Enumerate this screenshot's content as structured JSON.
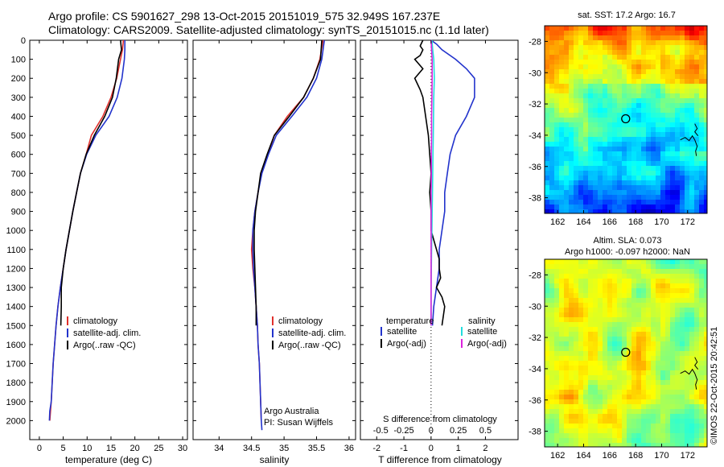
{
  "header": {
    "line1": "Argo profile: CS 5901627_298 13-Oct-2015 20151019_575 32.949S 167.237E",
    "line2": "Climatology: CARS2009. Satellite-adjusted climatology: synTS_20151015.nc (1.1d later)"
  },
  "colors": {
    "climatology": "#e0302c",
    "satellite": "#2233cc",
    "argo": "#000000",
    "magenta": "#dd22dd",
    "cyan": "#22dddd"
  },
  "chart_data": [
    {
      "type": "line",
      "xlabel": "temperature (deg C)",
      "xlim": [
        -2,
        31
      ],
      "ylim": [
        0,
        2100
      ],
      "x_ticks": [
        0,
        5,
        10,
        15,
        20,
        25,
        30
      ],
      "y_ticks": [
        0,
        100,
        200,
        300,
        400,
        500,
        600,
        700,
        800,
        900,
        1000,
        1100,
        1200,
        1300,
        1400,
        1500,
        1600,
        1700,
        1800,
        1900,
        2000
      ],
      "legend": [
        "climatology",
        "satellite-adj. clim.",
        "Argo(..raw -QC)"
      ],
      "legend_position": "lower-left",
      "series": [
        {
          "name": "climatology",
          "color": "#e0302c",
          "points": [
            [
              17.6,
              0
            ],
            [
              17.4,
              50
            ],
            [
              17.0,
              100
            ],
            [
              16.2,
              200
            ],
            [
              15.0,
              300
            ],
            [
              13.3,
              400
            ],
            [
              10.9,
              500
            ],
            [
              9.8,
              600
            ],
            [
              8.6,
              700
            ],
            [
              7.8,
              800
            ],
            [
              7.0,
              900
            ],
            [
              6.3,
              1000
            ],
            [
              5.6,
              1100
            ],
            [
              5.0,
              1200
            ],
            [
              4.4,
              1300
            ],
            [
              3.9,
              1400
            ],
            [
              3.5,
              1500
            ],
            [
              3.2,
              1600
            ],
            [
              2.9,
              1700
            ],
            [
              2.7,
              1800
            ],
            [
              2.5,
              1900
            ],
            [
              2.2,
              2000
            ]
          ]
        },
        {
          "name": "satellite-adj. clim.",
          "color": "#2233cc",
          "points": [
            [
              17.9,
              0
            ],
            [
              17.9,
              50
            ],
            [
              17.8,
              100
            ],
            [
              17.3,
              200
            ],
            [
              16.3,
              300
            ],
            [
              14.6,
              400
            ],
            [
              11.8,
              500
            ],
            [
              9.9,
              600
            ],
            [
              8.6,
              700
            ],
            [
              7.8,
              800
            ],
            [
              7.0,
              900
            ],
            [
              6.3,
              1000
            ],
            [
              5.6,
              1100
            ],
            [
              5.0,
              1200
            ],
            [
              4.4,
              1300
            ],
            [
              3.9,
              1400
            ],
            [
              3.5,
              1500
            ],
            [
              3.2,
              1600
            ],
            [
              2.9,
              1700
            ],
            [
              2.7,
              1800
            ],
            [
              2.5,
              1900
            ],
            [
              2.2,
              1950
            ],
            [
              2.1,
              2000
            ]
          ]
        },
        {
          "name": "Argo(..raw -QC)",
          "color": "#000000",
          "points": [
            [
              17.0,
              0
            ],
            [
              17.2,
              50
            ],
            [
              16.6,
              100
            ],
            [
              16.1,
              200
            ],
            [
              15.3,
              300
            ],
            [
              13.7,
              400
            ],
            [
              11.5,
              500
            ],
            [
              9.8,
              600
            ],
            [
              8.6,
              700
            ],
            [
              7.8,
              800
            ],
            [
              7.0,
              900
            ],
            [
              6.3,
              1000
            ],
            [
              5.6,
              1100
            ],
            [
              5.0,
              1200
            ],
            [
              4.6,
              1300
            ],
            [
              4.6,
              1400
            ],
            [
              4.5,
              1500
            ]
          ]
        }
      ]
    },
    {
      "type": "line",
      "xlabel": "salinity",
      "xlim": [
        33.6,
        36.1
      ],
      "ylim": [
        0,
        2100
      ],
      "x_ticks": [
        34,
        34.5,
        35,
        35.5,
        36
      ],
      "legend": [
        "climatology",
        "satellite-adj. clim.",
        "Argo(..raw -QC)"
      ],
      "legend_position": "lower-left",
      "annotations": [
        "Argo Australia",
        "PI: Susan Wijffels"
      ],
      "series": [
        {
          "name": "climatology",
          "color": "#e0302c",
          "points": [
            [
              35.6,
              0
            ],
            [
              35.55,
              100
            ],
            [
              35.45,
              200
            ],
            [
              35.3,
              300
            ],
            [
              35.05,
              400
            ],
            [
              34.85,
              500
            ],
            [
              34.75,
              600
            ],
            [
              34.65,
              700
            ],
            [
              34.6,
              800
            ],
            [
              34.55,
              900
            ],
            [
              34.52,
              1000
            ],
            [
              34.5,
              1100
            ],
            [
              34.52,
              1200
            ],
            [
              34.55,
              1300
            ],
            [
              34.57,
              1400
            ],
            [
              34.59,
              1500
            ],
            [
              34.6,
              1600
            ],
            [
              34.62,
              1700
            ],
            [
              34.63,
              1800
            ],
            [
              34.64,
              1900
            ],
            [
              34.65,
              2000
            ]
          ]
        },
        {
          "name": "satellite-adj. clim.",
          "color": "#2233cc",
          "points": [
            [
              35.62,
              0
            ],
            [
              35.58,
              100
            ],
            [
              35.5,
              200
            ],
            [
              35.35,
              300
            ],
            [
              35.12,
              400
            ],
            [
              34.88,
              500
            ],
            [
              34.76,
              600
            ],
            [
              34.66,
              700
            ],
            [
              34.6,
              800
            ],
            [
              34.55,
              900
            ],
            [
              34.52,
              1000
            ],
            [
              34.52,
              1100
            ],
            [
              34.53,
              1200
            ],
            [
              34.55,
              1300
            ],
            [
              34.57,
              1400
            ],
            [
              34.59,
              1500
            ],
            [
              34.6,
              1600
            ],
            [
              34.62,
              1700
            ],
            [
              34.63,
              1800
            ],
            [
              34.64,
              1900
            ],
            [
              34.65,
              2000
            ],
            [
              34.66,
              2050
            ]
          ]
        },
        {
          "name": "Argo(..raw -QC)",
          "color": "#000000",
          "points": [
            [
              35.58,
              0
            ],
            [
              35.56,
              100
            ],
            [
              35.45,
              200
            ],
            [
              35.3,
              300
            ],
            [
              35.08,
              400
            ],
            [
              34.85,
              500
            ],
            [
              34.74,
              600
            ],
            [
              34.64,
              700
            ],
            [
              34.6,
              800
            ],
            [
              34.56,
              900
            ],
            [
              34.54,
              1000
            ],
            [
              34.54,
              1100
            ],
            [
              34.55,
              1200
            ],
            [
              34.56,
              1300
            ],
            [
              34.57,
              1400
            ],
            [
              34.57,
              1500
            ]
          ]
        }
      ]
    },
    {
      "type": "line",
      "xlabel": "T difference from climatology",
      "x2label": "S difference from climatology",
      "xlim": [
        -2.6,
        3.2
      ],
      "ylim": [
        0,
        2100
      ],
      "x_ticks": [
        -2,
        -1,
        0,
        1,
        2
      ],
      "x2_ticks": [
        "-0.5",
        "-0.25",
        "0",
        "0.25",
        "0.5"
      ],
      "legend_title_left": "temperature",
      "legend_title_right": "salinity",
      "legend_left": [
        "satellite",
        "Argo(-adj)"
      ],
      "legend_right": [
        "satellite",
        "Argo(-adj)"
      ],
      "legend_position": "lower",
      "series": [
        {
          "name": "temperature satellite",
          "color": "#2233cc",
          "points": [
            [
              0.0,
              0
            ],
            [
              0.2,
              20
            ],
            [
              0.4,
              50
            ],
            [
              0.9,
              100
            ],
            [
              1.3,
              150
            ],
            [
              1.6,
              200
            ],
            [
              1.6,
              300
            ],
            [
              1.3,
              400
            ],
            [
              0.9,
              500
            ],
            [
              0.7,
              600
            ],
            [
              0.6,
              700
            ],
            [
              0.5,
              800
            ],
            [
              0.5,
              900
            ],
            [
              0.4,
              1000
            ],
            [
              0.3,
              1100
            ],
            [
              0.3,
              1200
            ],
            [
              0.2,
              1300
            ],
            [
              0.1,
              1400
            ],
            [
              0.05,
              1500
            ]
          ]
        },
        {
          "name": "temperature Argo(-adj)",
          "color": "#000000",
          "points": [
            [
              -0.3,
              0
            ],
            [
              -0.4,
              30
            ],
            [
              -0.3,
              50
            ],
            [
              -0.4,
              80
            ],
            [
              -0.6,
              100
            ],
            [
              -0.3,
              150
            ],
            [
              -0.6,
              200
            ],
            [
              -0.4,
              260
            ],
            [
              -0.3,
              300
            ],
            [
              -0.2,
              400
            ],
            [
              -0.1,
              500
            ],
            [
              -0.05,
              600
            ],
            [
              0.0,
              700
            ],
            [
              -0.05,
              800
            ],
            [
              0.0,
              900
            ],
            [
              0.0,
              1000
            ],
            [
              0.1,
              1050
            ],
            [
              0.2,
              1100
            ],
            [
              0.3,
              1150
            ],
            [
              0.3,
              1200
            ],
            [
              0.35,
              1250
            ],
            [
              0.2,
              1300
            ],
            [
              0.4,
              1350
            ],
            [
              0.5,
              1400
            ],
            [
              0.45,
              1450
            ],
            [
              0.4,
              1500
            ]
          ]
        },
        {
          "name": "salinity satellite",
          "color": "#22dddd",
          "points": [
            [
              0.03,
              0
            ],
            [
              0.06,
              50
            ],
            [
              0.1,
              100
            ],
            [
              0.12,
              200
            ],
            [
              0.1,
              300
            ],
            [
              0.09,
              400
            ],
            [
              0.08,
              500
            ],
            [
              0.07,
              600
            ],
            [
              0.06,
              700
            ],
            [
              0.05,
              800
            ],
            [
              0.04,
              900
            ],
            [
              0.03,
              1000
            ],
            [
              0.02,
              1100
            ],
            [
              0.01,
              1200
            ],
            [
              0.0,
              1300
            ],
            [
              0.0,
              1400
            ],
            [
              0.0,
              1500
            ]
          ]
        },
        {
          "name": "salinity Argo(-adj)",
          "color": "#dd22dd",
          "points": [
            [
              0.0,
              0
            ],
            [
              0.02,
              50
            ],
            [
              0.04,
              100
            ],
            [
              0.04,
              200
            ],
            [
              0.03,
              300
            ],
            [
              0.02,
              400
            ],
            [
              0.02,
              500
            ],
            [
              0.01,
              600
            ],
            [
              0.01,
              700
            ],
            [
              0.0,
              800
            ],
            [
              0.0,
              900
            ],
            [
              0.0,
              1000
            ],
            [
              0.0,
              1100
            ],
            [
              0.0,
              1200
            ],
            [
              0.0,
              1300
            ],
            [
              0.0,
              1400
            ],
            [
              0.0,
              1500
            ]
          ]
        }
      ]
    },
    {
      "type": "heatmap",
      "title": "sat. SST: 17.2 Argo: 16.7",
      "x_ticks": [
        162,
        164,
        166,
        168,
        170,
        172
      ],
      "y_ticks": [
        -28,
        -30,
        -32,
        -34,
        -36,
        -38
      ],
      "xlim": [
        161,
        173.5
      ],
      "ylim": [
        -39,
        -27
      ]
    },
    {
      "type": "heatmap",
      "title_lines": [
        "Altim. SLA: 0.073",
        "Argo h1000: -0.097 h2000: NaN"
      ],
      "x_ticks": [
        162,
        164,
        166,
        168,
        170,
        172
      ],
      "y_ticks": [
        -28,
        -30,
        -32,
        -34,
        -36,
        -38
      ],
      "xlim": [
        161,
        173.5
      ],
      "ylim": [
        -39,
        -27
      ]
    }
  ],
  "footer": {
    "stamp": "©IMOS 22-Oct-2015 20:42:51"
  }
}
